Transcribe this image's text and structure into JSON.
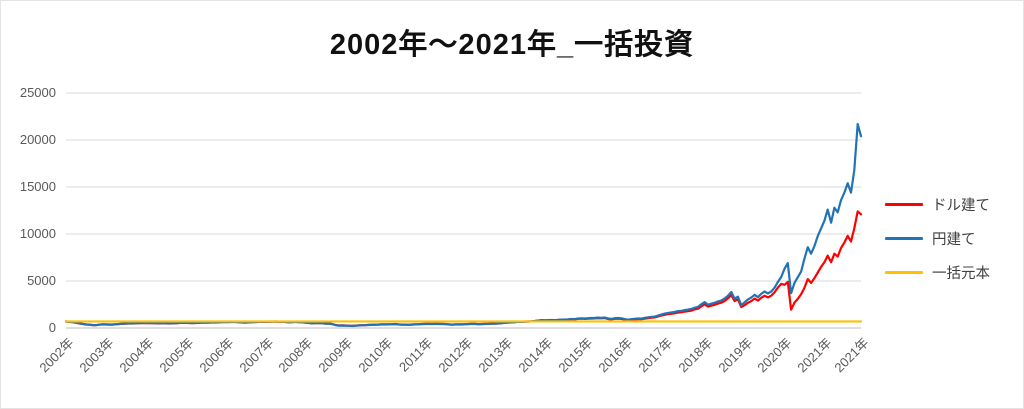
{
  "chart_data": {
    "type": "line",
    "title": "2002年〜2021年_一括投資",
    "xlabel": "",
    "ylabel": "",
    "x_unit": "monthly points from Jan 2002 to Dec 2021",
    "x_tick_labels": [
      "2002年",
      "2003年",
      "2004年",
      "2005年",
      "2006年",
      "2007年",
      "2008年",
      "2009年",
      "2010年",
      "2011年",
      "2012年",
      "2013年",
      "2014年",
      "2015年",
      "2016年",
      "2017年",
      "2018年",
      "2019年",
      "2020年",
      "2021年",
      "2021年"
    ],
    "y_ticks": [
      0,
      5000,
      10000,
      15000,
      20000,
      25000
    ],
    "ylim": [
      0,
      25000
    ],
    "grid": true,
    "legend_position": "right",
    "series": [
      {
        "name": "ドル建て",
        "color": "#FF0000",
        "values": [
          695,
          652,
          612,
          552,
          492,
          432,
          372,
          352,
          312,
          295,
          352,
          382,
          372,
          362,
          367,
          392,
          422,
          452,
          470,
          480,
          480,
          500,
          510,
          525,
          533,
          523,
          508,
          498,
          488,
          503,
          493,
          483,
          493,
          503,
          533,
          558,
          538,
          528,
          518,
          533,
          548,
          563,
          588,
          578,
          593,
          583,
          608,
          628,
          642,
          632,
          647,
          637,
          607,
          587,
          577,
          597,
          612,
          632,
          647,
          662,
          648,
          658,
          668,
          678,
          658,
          668,
          638,
          603,
          628,
          648,
          613,
          603,
          572,
          542,
          502,
          522,
          532,
          507,
          467,
          477,
          427,
          325,
          270,
          280,
          262,
          242,
          227,
          257,
          282,
          297,
          312,
          327,
          347,
          357,
          372,
          392,
          382,
          392,
          407,
          422,
          387,
          367,
          367,
          352,
          377,
          397,
          407,
          427,
          437,
          444,
          432,
          447,
          440,
          432,
          424,
          397,
          367,
          382,
          390,
          382,
          407,
          422,
          444,
          437,
          420,
          427,
          437,
          452,
          474,
          467,
          490,
          522,
          563,
          588,
          608,
          633,
          668,
          653,
          688,
          696,
          716,
          748,
          788,
          832,
          810,
          833,
          842,
          830,
          853,
          872,
          885,
          908,
          935,
          918,
          975,
          998,
          965,
          992,
          1010,
          1022,
          1048,
          1032,
          1058,
          952,
          915,
          980,
          998,
          972,
          882,
          820,
          882,
          910,
          942,
          928,
          1005,
          1055,
          1100,
          1128,
          1222,
          1330,
          1408,
          1470,
          1515,
          1560,
          1650,
          1668,
          1740,
          1795,
          1850,
          1978,
          2050,
          2300,
          2520,
          2280,
          2370,
          2460,
          2600,
          2690,
          2870,
          3150,
          3500,
          2870,
          3050,
          2230,
          2430,
          2680,
          2860,
          3130,
          2910,
          3210,
          3430,
          3260,
          3440,
          3790,
          4290,
          4690,
          4600,
          4900,
          1950,
          2700,
          3100,
          3600,
          4300,
          5200,
          4800,
          5300,
          5900,
          6500,
          7000,
          7700,
          7000,
          7900,
          7600,
          8500,
          9100,
          9800,
          9200,
          10600,
          12400,
          12100
        ]
      },
      {
        "name": "円建て",
        "color": "#2273B6",
        "values": [
          700,
          660,
          620,
          560,
          500,
          440,
          380,
          360,
          320,
          300,
          360,
          390,
          380,
          370,
          375,
          400,
          430,
          460,
          480,
          490,
          490,
          510,
          520,
          535,
          545,
          535,
          520,
          510,
          500,
          515,
          505,
          495,
          505,
          515,
          545,
          570,
          550,
          540,
          530,
          545,
          560,
          575,
          600,
          590,
          605,
          595,
          620,
          640,
          655,
          645,
          660,
          650,
          620,
          600,
          590,
          610,
          625,
          645,
          660,
          675,
          660,
          670,
          680,
          690,
          670,
          680,
          650,
          615,
          640,
          660,
          625,
          615,
          560,
          530,
          490,
          510,
          520,
          495,
          455,
          465,
          415,
          310,
          255,
          265,
          250,
          230,
          215,
          245,
          270,
          285,
          300,
          315,
          335,
          345,
          360,
          380,
          370,
          380,
          395,
          410,
          375,
          355,
          355,
          340,
          365,
          385,
          395,
          415,
          425,
          432,
          420,
          435,
          428,
          420,
          412,
          385,
          355,
          370,
          378,
          370,
          395,
          410,
          432,
          425,
          408,
          415,
          425,
          440,
          462,
          455,
          478,
          510,
          555,
          580,
          600,
          625,
          660,
          645,
          680,
          690,
          710,
          745,
          790,
          840,
          820,
          845,
          855,
          845,
          870,
          890,
          905,
          930,
          960,
          945,
          1010,
          1035,
          1010,
          1040,
          1060,
          1075,
          1105,
          1090,
          1120,
          1010,
          970,
          1040,
          1060,
          1035,
          945,
          880,
          945,
          975,
          1010,
          995,
          1080,
          1135,
          1185,
          1215,
          1320,
          1440,
          1530,
          1600,
          1650,
          1700,
          1800,
          1820,
          1900,
          1960,
          2020,
          2160,
          2240,
          2520,
          2750,
          2480,
          2580,
          2680,
          2830,
          2930,
          3130,
          3430,
          3830,
          3130,
          3330,
          2430,
          2730,
          3030,
          3230,
          3530,
          3280,
          3630,
          3880,
          3680,
          3880,
          4280,
          4880,
          5430,
          6300,
          6900,
          3700,
          4800,
          5400,
          6000,
          7400,
          8600,
          7900,
          8700,
          9800,
          10600,
          11400,
          12600,
          11200,
          12800,
          12300,
          13600,
          14400,
          15400,
          14400,
          16800,
          21700,
          20400
        ]
      },
      {
        "name": "一括元本",
        "color": "#FFC000",
        "constant": 700
      }
    ]
  },
  "colors": {
    "gridline": "#D9D9D9",
    "axis_line": "#BFBFBF",
    "tick_text": "#595959",
    "title_text": "#111111",
    "legend_text": "#404040"
  }
}
